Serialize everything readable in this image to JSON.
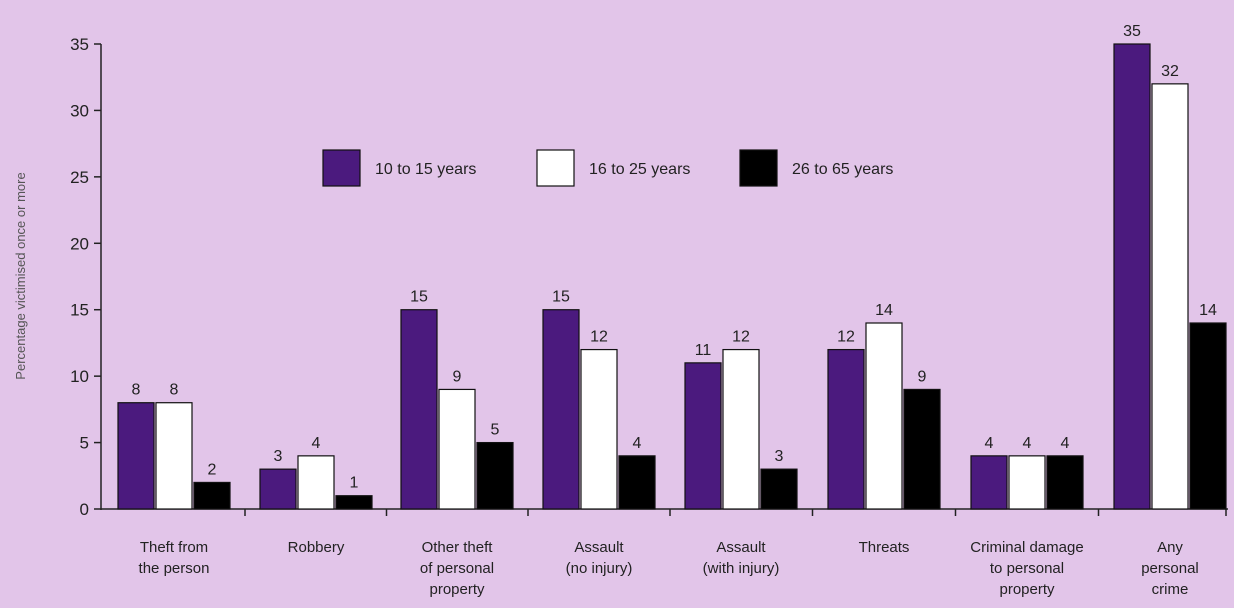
{
  "chart_data": {
    "type": "bar",
    "ylabel": "Percentage victimised once or more",
    "ylim": [
      0,
      35
    ],
    "yticks": [
      0,
      5,
      10,
      15,
      20,
      25,
      30,
      35
    ],
    "categories": [
      [
        "Theft from",
        "the person"
      ],
      [
        "Robbery"
      ],
      [
        "Other theft",
        "of personal",
        "property"
      ],
      [
        "Assault",
        "(no injury)"
      ],
      [
        "Assault",
        "(with injury)"
      ],
      [
        "Threats"
      ],
      [
        "Criminal damage",
        "to personal",
        "property"
      ],
      [
        "Any",
        "personal",
        "crime"
      ]
    ],
    "series": [
      {
        "name": "10 to 15 years",
        "color": "#4b1a7e",
        "values": [
          8,
          3,
          15,
          15,
          11,
          12,
          4,
          35
        ]
      },
      {
        "name": "16 to 25 years",
        "color": "#ffffff",
        "values": [
          8,
          4,
          9,
          12,
          12,
          14,
          4,
          32
        ]
      },
      {
        "name": "26 to 65 years",
        "color": "#000000",
        "values": [
          2,
          1,
          5,
          4,
          3,
          9,
          4,
          14
        ]
      }
    ],
    "legend_position": "top-center",
    "grid": false
  }
}
